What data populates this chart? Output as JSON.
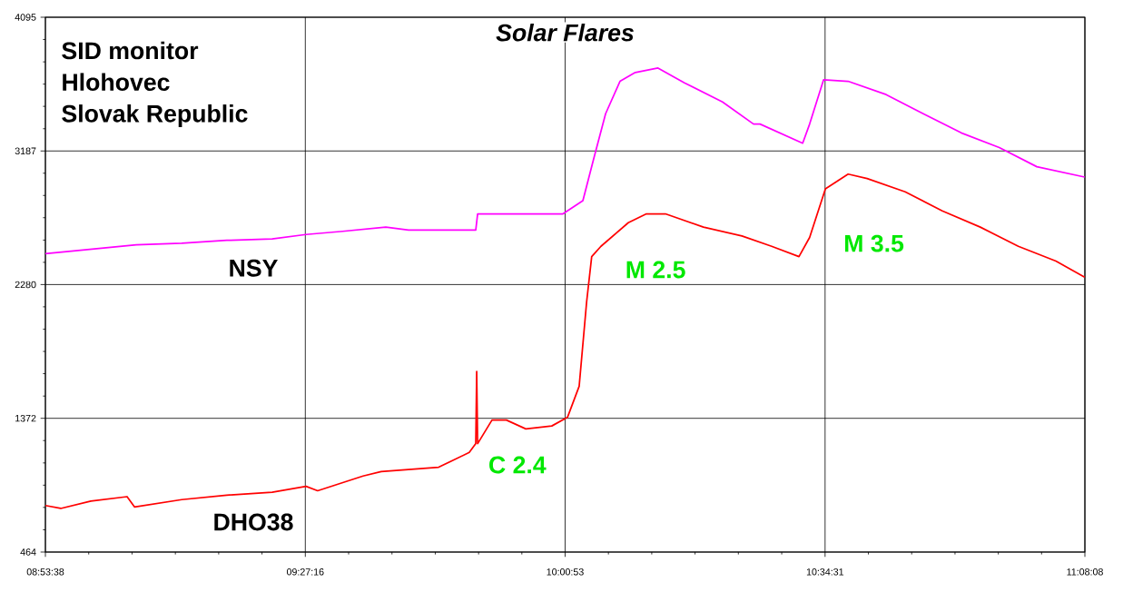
{
  "chart_data": {
    "type": "line",
    "title": "Solar Flares",
    "annotations": [
      "SID monitor",
      "Hlohovec",
      "Slovak Republic",
      "C 2.4",
      "M 2.5",
      "M 3.5"
    ],
    "series": [
      {
        "name": "NSY",
        "color": "#ff00ff",
        "x": [
          8.894,
          8.992,
          9.09,
          9.188,
          9.285,
          9.383,
          9.456,
          9.53,
          9.628,
          9.677,
          9.775,
          9.822,
          9.826,
          9.93,
          10.01,
          10.053,
          10.076,
          10.102,
          10.133,
          10.166,
          10.215,
          10.272,
          10.354,
          10.421,
          10.435,
          10.527,
          10.542,
          10.572,
          10.625,
          10.707,
          10.787,
          10.869,
          10.951,
          11.032,
          11.135
        ],
        "values": [
          2490,
          2520,
          2550,
          2560,
          2580,
          2590,
          2620,
          2640,
          2670,
          2650,
          2650,
          2650,
          2760,
          2760,
          2760,
          2850,
          3130,
          3440,
          3660,
          3720,
          3750,
          3650,
          3520,
          3370,
          3370,
          3240,
          3370,
          3670,
          3660,
          3570,
          3440,
          3310,
          3210,
          3080,
          3010
        ]
      },
      {
        "name": "DHO38",
        "color": "#ff0000",
        "x": [
          8.894,
          8.927,
          8.992,
          9.07,
          9.086,
          9.188,
          9.285,
          9.383,
          9.456,
          9.481,
          9.579,
          9.618,
          9.742,
          9.808,
          9.822,
          9.824,
          9.826,
          9.857,
          9.888,
          9.93,
          9.986,
          10.02,
          10.045,
          10.061,
          10.072,
          10.092,
          10.151,
          10.19,
          10.231,
          10.313,
          10.396,
          10.46,
          10.519,
          10.542,
          10.576,
          10.625,
          10.666,
          10.748,
          10.828,
          10.91,
          10.992,
          11.073,
          11.135
        ],
        "values": [
          780,
          760,
          810,
          840,
          770,
          820,
          850,
          870,
          910,
          880,
          980,
          1010,
          1040,
          1140,
          1200,
          1690,
          1200,
          1360,
          1360,
          1300,
          1320,
          1380,
          1590,
          2160,
          2470,
          2540,
          2700,
          2760,
          2760,
          2670,
          2610,
          2540,
          2470,
          2600,
          2930,
          3030,
          3000,
          2910,
          2780,
          2670,
          2540,
          2440,
          2330
        ]
      }
    ],
    "xlim": [
      8.8939,
      11.1356
    ],
    "xticks": [
      {
        "value": 8.8939,
        "label": "08:53:38"
      },
      {
        "value": 8.9873,
        "label": null
      },
      {
        "value": 9.0807,
        "label": null
      },
      {
        "value": 9.1742,
        "label": null
      },
      {
        "value": 9.2676,
        "label": null
      },
      {
        "value": 9.361,
        "label": null
      },
      {
        "value": 9.4544,
        "label": "09:27:16"
      },
      {
        "value": 9.5478,
        "label": null
      },
      {
        "value": 9.6413,
        "label": null
      },
      {
        "value": 9.7347,
        "label": null
      },
      {
        "value": 9.8281,
        "label": null
      },
      {
        "value": 9.9214,
        "label": null
      },
      {
        "value": 10.0147,
        "label": "10:00:53"
      },
      {
        "value": 10.1081,
        "label": null
      },
      {
        "value": 10.2015,
        "label": null
      },
      {
        "value": 10.2949,
        "label": null
      },
      {
        "value": 10.3883,
        "label": null
      },
      {
        "value": 10.4818,
        "label": null
      },
      {
        "value": 10.5753,
        "label": "10:34:31"
      },
      {
        "value": 10.6687,
        "label": null
      },
      {
        "value": 10.7621,
        "label": null
      },
      {
        "value": 10.8555,
        "label": null
      },
      {
        "value": 10.9489,
        "label": null
      },
      {
        "value": 11.0422,
        "label": null
      },
      {
        "value": 11.1356,
        "label": "11:08:08"
      }
    ],
    "ylim": [
      464,
      4095
    ],
    "yticks": [
      464,
      {
        "value": 615,
        "label": null
      },
      {
        "value": 767,
        "label": null
      },
      {
        "value": 918,
        "label": null
      },
      {
        "value": 1069,
        "label": null
      },
      {
        "value": 1221,
        "label": null
      },
      1372,
      {
        "value": 1523,
        "label": null
      },
      {
        "value": 1675,
        "label": null
      },
      {
        "value": 1826,
        "label": null
      },
      {
        "value": 1977,
        "label": null
      },
      {
        "value": 2129,
        "label": null
      },
      2280,
      {
        "value": 2431,
        "label": null
      },
      {
        "value": 2582,
        "label": null
      },
      {
        "value": 2734,
        "label": null
      },
      {
        "value": 2885,
        "label": null
      },
      {
        "value": 3036,
        "label": null
      },
      3187,
      {
        "value": 3338,
        "label": null
      },
      {
        "value": 3490,
        "label": null
      },
      {
        "value": 3641,
        "label": null
      },
      {
        "value": 3792,
        "label": null
      },
      {
        "value": 3944,
        "label": null
      },
      4095
    ],
    "grid": true,
    "marker": "none",
    "line_style": "solid"
  }
}
